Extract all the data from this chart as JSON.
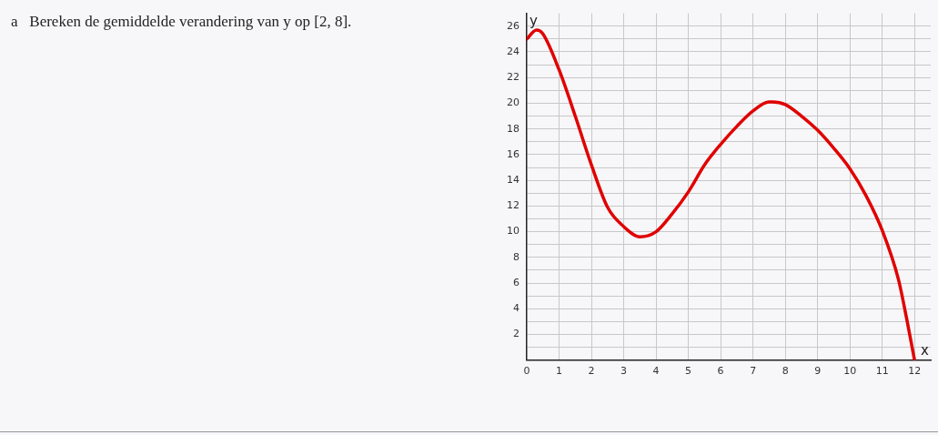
{
  "chart_data": {
    "type": "line",
    "xlabel": "x",
    "ylabel": "y",
    "annotations": [
      "a   Bereken de gemiddelde verandering van y op [2, 8]."
    ],
    "series": [
      {
        "color": "#e00000",
        "x": [
          0,
          0.3,
          0.5,
          1,
          1.5,
          2,
          2.5,
          3,
          3.5,
          4,
          4.5,
          5,
          5.5,
          6,
          6.5,
          7,
          7.5,
          7.6,
          8,
          8.5,
          9,
          9.5,
          10,
          10.5,
          11,
          11.5,
          11.75,
          12
        ],
        "values": [
          25,
          25.7,
          25.4,
          22.6,
          19,
          15.2,
          11.9,
          10.4,
          9.6,
          10,
          11.4,
          13.1,
          15.2,
          16.8,
          18.2,
          19.4,
          20.1,
          20.1,
          19.9,
          19,
          17.9,
          16.5,
          14.9,
          12.8,
          10.1,
          6.3,
          3.3,
          0
        ]
      }
    ],
    "xlim": [
      0,
      12.5
    ],
    "ylim": [
      0,
      27
    ],
    "xticks": [
      {
        "value": 0,
        "label": "0"
      },
      1,
      2,
      3,
      4,
      5,
      6,
      7,
      8,
      9,
      10,
      11,
      12
    ],
    "yticks": [
      {
        "value": 1,
        "label": null
      },
      2,
      {
        "value": 3,
        "label": null
      },
      4,
      {
        "value": 5,
        "label": null
      },
      6,
      {
        "value": 7,
        "label": null
      },
      8,
      {
        "value": 9,
        "label": null
      },
      10,
      {
        "value": 11,
        "label": null
      },
      12,
      {
        "value": 13,
        "label": null
      },
      14,
      {
        "value": 15,
        "label": null
      },
      16,
      {
        "value": 17,
        "label": null
      },
      18,
      {
        "value": 19,
        "label": null
      },
      20,
      {
        "value": 21,
        "label": null
      },
      22,
      {
        "value": 23,
        "label": null
      },
      24,
      {
        "value": 25,
        "label": null
      },
      26
    ],
    "grid": true,
    "legend": false,
    "marker": "none",
    "line_style": "solid"
  }
}
